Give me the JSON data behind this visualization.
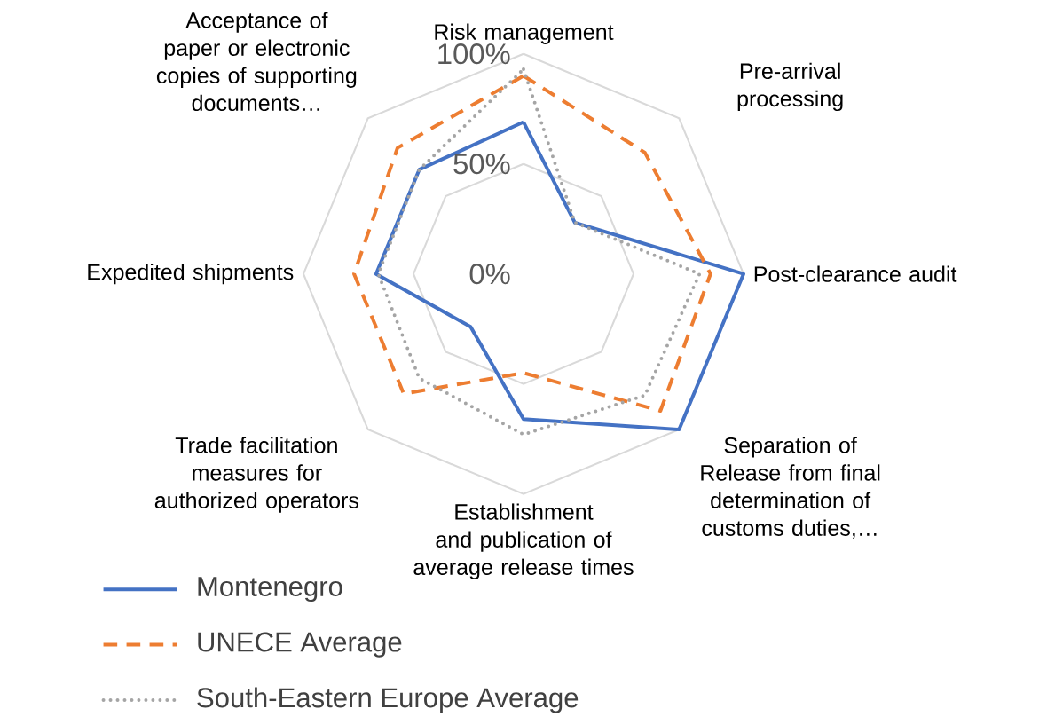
{
  "chart_data": {
    "type": "radar",
    "categories": [
      "Risk management",
      "Pre-arrival processing",
      "Post-clearance audit",
      "Separation of Release from final determination of customs duties,…",
      "Establishment and publication of average release times",
      "Trade facilitation measures for authorized operators",
      "Expedited shipments",
      "Acceptance of paper or electronic copies of supporting documents…"
    ],
    "series": [
      {
        "name": "Montenegro",
        "color": "#4472c4",
        "line_style": "solid",
        "values": [
          69,
          33,
          100,
          100,
          66,
          34,
          67,
          67
        ]
      },
      {
        "name": "UNECE Average",
        "color": "#ed7d31",
        "line_style": "dashed",
        "values": [
          90,
          78,
          85,
          88,
          45,
          77,
          77,
          81
        ]
      },
      {
        "name": "South-Eastern Europe Average",
        "color": "#a5a5a5",
        "line_style": "dotted",
        "values": [
          93,
          33,
          80,
          78,
          73,
          67,
          66,
          67
        ]
      }
    ],
    "ylim": [
      0,
      100
    ],
    "yticks": [
      {
        "value": 0,
        "label": "0%"
      },
      {
        "value": 50,
        "label": "50%"
      },
      {
        "value": 100,
        "label": "100%"
      }
    ],
    "grid": true,
    "legend": "bottom left",
    "marker": "none"
  }
}
